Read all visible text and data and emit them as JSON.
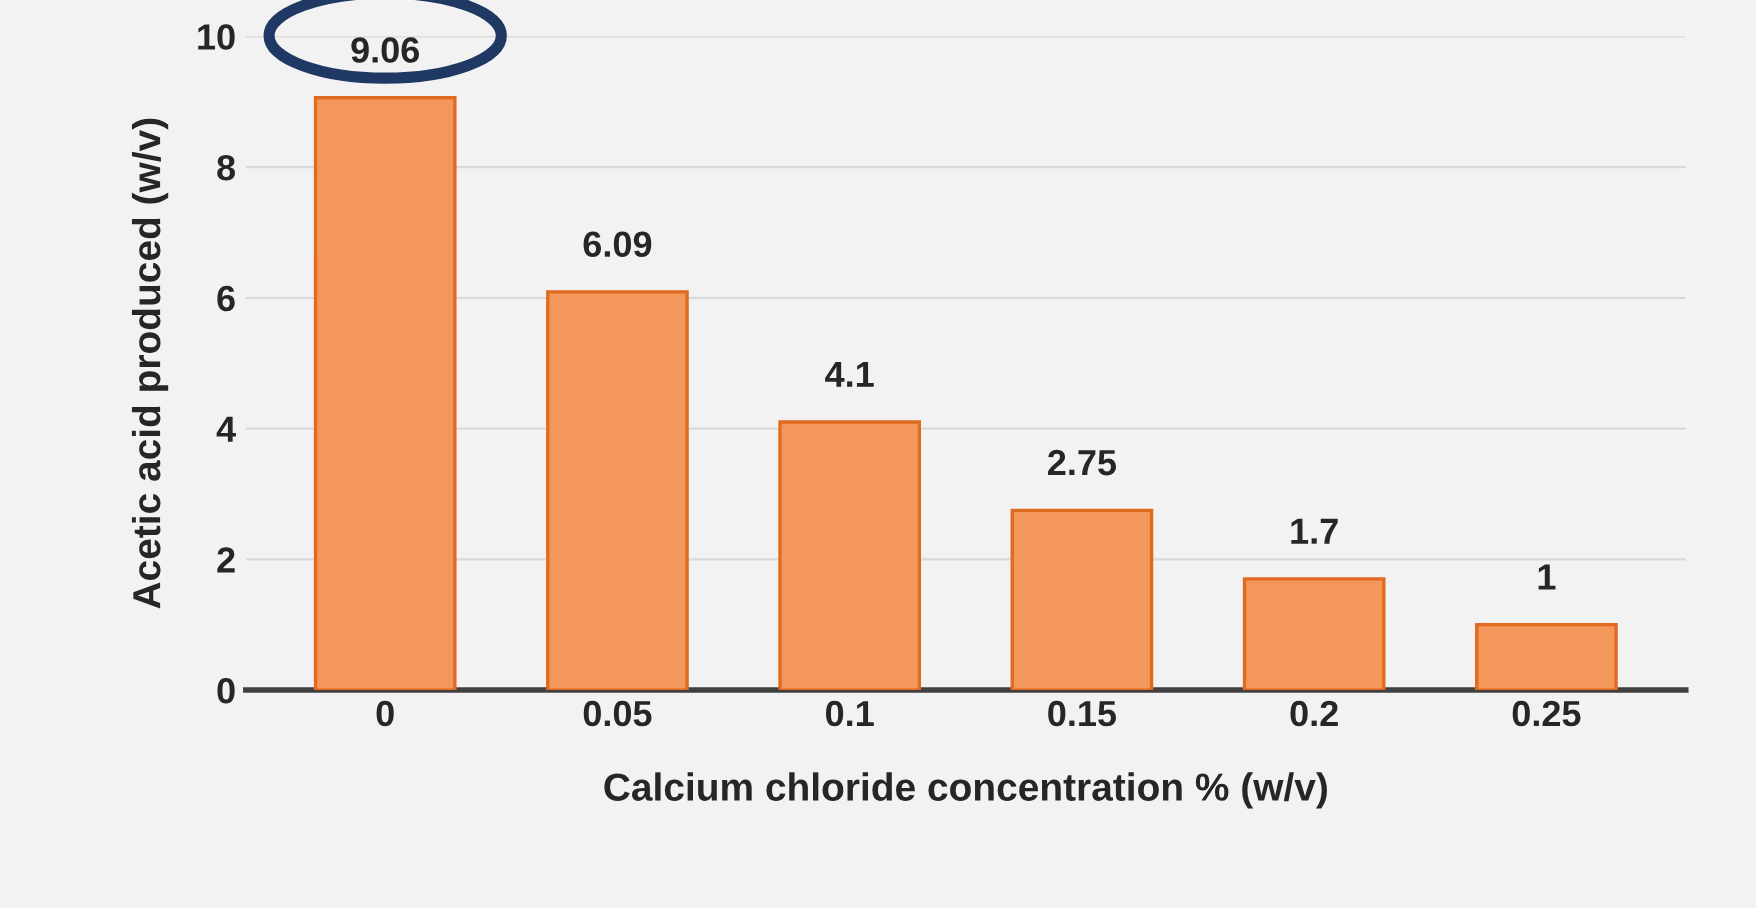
{
  "chart_data": {
    "type": "bar",
    "xlabel": "Calcium chloride concentration % (w/v)",
    "ylabel": "Acetic acid produced (w/v)",
    "categories": [
      "0",
      "0.05",
      "0.1",
      "0.15",
      "0.2",
      "0.25"
    ],
    "values": [
      9.06,
      6.09,
      4.1,
      2.75,
      1.7,
      1
    ],
    "color": "#f4975a",
    "ylim": [
      0,
      10
    ],
    "yticks": [
      0,
      2,
      4,
      6,
      8,
      10
    ],
    "grid": "y",
    "data_labels": true
  }
}
